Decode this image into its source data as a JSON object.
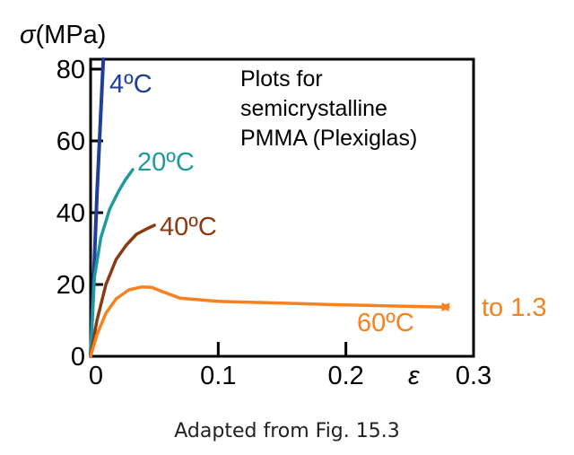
{
  "chart_data": {
    "type": "line",
    "ylabel_symbol": "σ",
    "ylabel_unit": "(MPa)",
    "xlabel_symbol": "ε",
    "xlim": [
      0,
      0.3
    ],
    "ylim": [
      0,
      85
    ],
    "x_ticks": [
      {
        "value": 0,
        "label": "0"
      },
      {
        "value": 0.1,
        "label": "0.1"
      },
      {
        "value": 0.2,
        "label": "0.2"
      },
      {
        "value": 0.3,
        "label": "0.3"
      }
    ],
    "y_ticks": [
      {
        "value": 0,
        "label": "0"
      },
      {
        "value": 20,
        "label": "20"
      },
      {
        "value": 40,
        "label": "40"
      },
      {
        "value": 60,
        "label": "60"
      },
      {
        "value": 80,
        "label": "80"
      }
    ],
    "annotation_lines": [
      "Plots for",
      "semicrystalline",
      "PMMA (Plexiglas)"
    ],
    "series": [
      {
        "name": "4ºC",
        "color": "#1f3f99",
        "x": [
          0,
          0.005,
          0.01
        ],
        "y": [
          0,
          45,
          88
        ]
      },
      {
        "name": "20ºC",
        "color": "#1e9a9c",
        "x": [
          0,
          0.003,
          0.008,
          0.015,
          0.022,
          0.027,
          0.033
        ],
        "y": [
          0,
          22,
          33,
          41,
          46,
          49,
          52
        ]
      },
      {
        "name": "40ºC",
        "color": "#8a3a12",
        "x": [
          0,
          0.005,
          0.012,
          0.02,
          0.028,
          0.036,
          0.044,
          0.05
        ],
        "y": [
          0,
          10,
          20,
          27,
          31,
          34,
          35.5,
          36.5
        ]
      },
      {
        "name": "60ºC",
        "color": "#f7801f",
        "x": [
          0,
          0.005,
          0.012,
          0.02,
          0.03,
          0.04,
          0.048,
          0.055,
          0.07,
          0.1,
          0.15,
          0.2,
          0.25,
          0.28
        ],
        "y": [
          0,
          6,
          12,
          16,
          18.5,
          19.3,
          19.2,
          18.2,
          16.2,
          15.3,
          14.8,
          14.3,
          13.9,
          13.7
        ]
      }
    ],
    "overflow_label": "to 1.3"
  },
  "caption": "Adapted from Fig. 15.3"
}
